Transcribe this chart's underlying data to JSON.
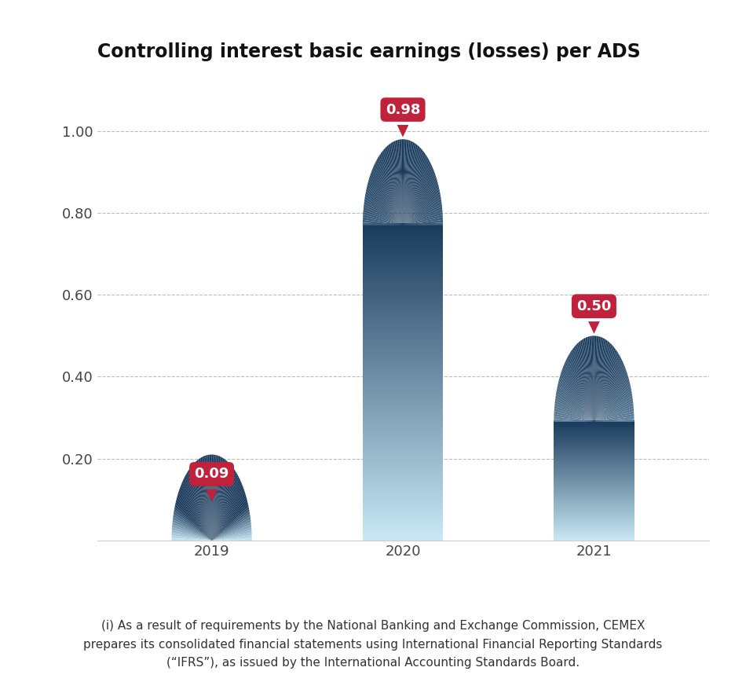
{
  "title": "Controlling interest basic earnings (losses) per ADS",
  "categories": [
    "2019",
    "2020",
    "2021"
  ],
  "values": [
    0.09,
    0.98,
    0.5
  ],
  "labels": [
    "0.09",
    "0.98",
    "0.50"
  ],
  "ylim": [
    0,
    1.1
  ],
  "yticks": [
    0.2,
    0.4,
    0.6,
    0.8,
    1.0
  ],
  "ytick_labels": [
    "0.20",
    "0.40",
    "0.60",
    "0.80",
    "1.00"
  ],
  "bar_color_top": "#1a3a5c",
  "bar_color_bottom": "#c8e8f5",
  "label_bg_color": "#c0213b",
  "label_text_color": "#ffffff",
  "background_color": "#ffffff",
  "footnote": "(i) As a result of requirements by the National Banking and Exchange Commission, CEMEX\nprepares its consolidated financial statements using International Financial Reporting Standards\n(“IFRS”), as issued by the International Accounting Standards Board.",
  "title_fontsize": 17,
  "tick_fontsize": 13,
  "label_fontsize": 13,
  "footnote_fontsize": 11,
  "bar_width": 0.42
}
